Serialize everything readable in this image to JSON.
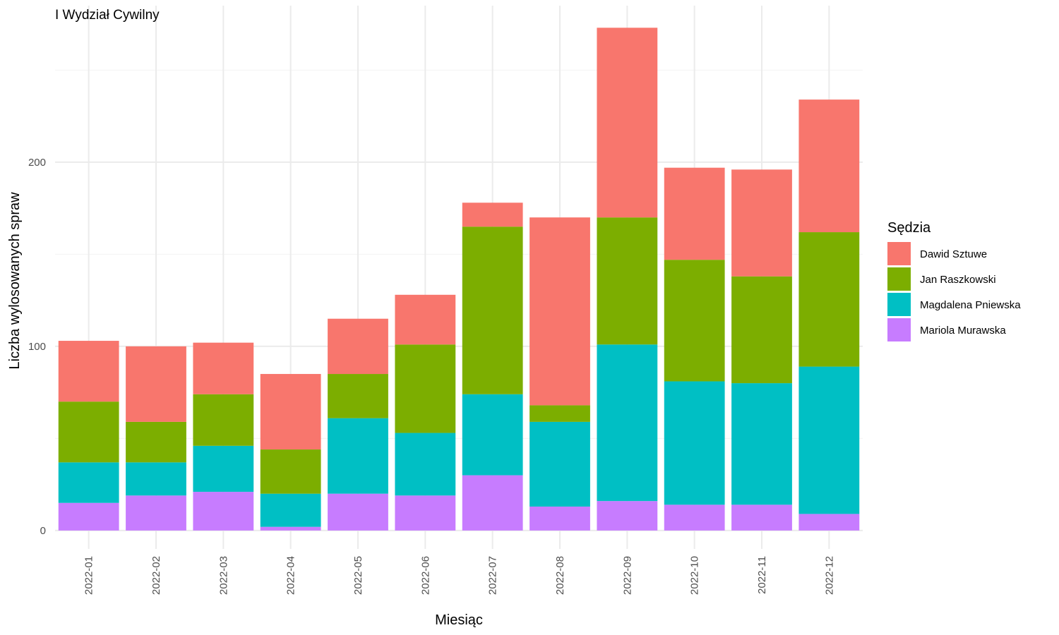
{
  "chart_data": {
    "type": "bar",
    "stacked": true,
    "title": "I Wydział Cywilny",
    "xlabel": "Miesiąc",
    "ylabel": "Liczba wylosowanych spraw",
    "ylim": [
      -10,
      285
    ],
    "yticks": [
      0,
      100,
      200
    ],
    "grid": true,
    "legend": {
      "title": "Sędzia",
      "position": "right"
    },
    "categories": [
      "2022-01",
      "2022-02",
      "2022-03",
      "2022-04",
      "2022-05",
      "2022-06",
      "2022-07",
      "2022-08",
      "2022-09",
      "2022-10",
      "2022-11",
      "2022-12"
    ],
    "series": [
      {
        "name": "Mariola Murawska",
        "color": "#C77CFF",
        "values": [
          15,
          19,
          21,
          2,
          20,
          19,
          30,
          13,
          16,
          14,
          14,
          9
        ]
      },
      {
        "name": "Magdalena Pniewska",
        "color": "#00BFC4",
        "values": [
          22,
          18,
          25,
          18,
          41,
          34,
          44,
          46,
          85,
          67,
          66,
          80
        ]
      },
      {
        "name": "Jan Raszkowski",
        "color": "#7CAE00",
        "values": [
          33,
          22,
          28,
          24,
          24,
          48,
          91,
          9,
          69,
          66,
          58,
          73
        ]
      },
      {
        "name": "Dawid Sztuwe",
        "color": "#F8766D",
        "values": [
          33,
          41,
          28,
          41,
          30,
          27,
          13,
          102,
          103,
          50,
          58,
          72
        ]
      }
    ],
    "legend_order": [
      "Dawid Sztuwe",
      "Jan Raszkowski",
      "Magdalena Pniewska",
      "Mariola Murawska"
    ]
  }
}
